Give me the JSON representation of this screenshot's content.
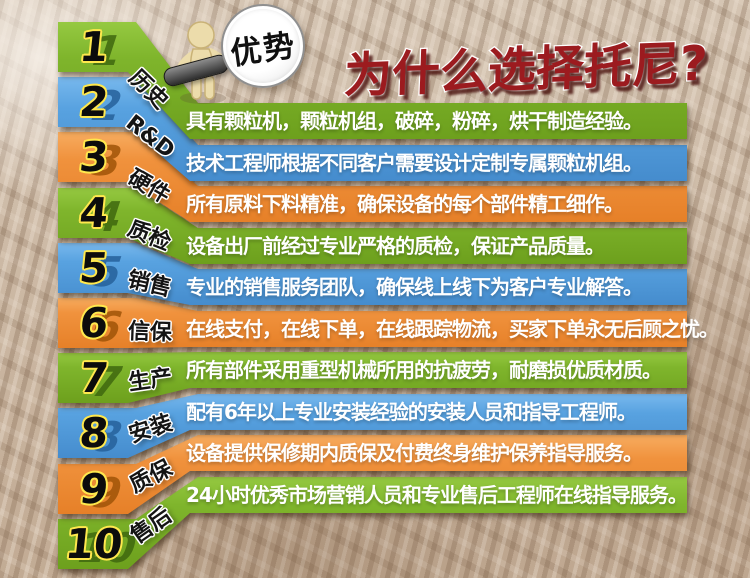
{
  "page": {
    "badge_label": "优势",
    "headline": "为什么选择托尼?",
    "colors": {
      "green": "#7fb52c",
      "blue": "#58a2e0",
      "orange": "#f0923d",
      "headline_red": "#9c1b1f",
      "number_outline_yellow": "#ffe84d"
    }
  },
  "rows": [
    {
      "num": "1",
      "category": "历史",
      "color": "green",
      "description": "具有颗粒机，颗粒机组，破碎，粉碎，烘干制造经验。"
    },
    {
      "num": "2",
      "category": "R&D",
      "color": "blue",
      "description": "技术工程师根据不同客户需要设计定制专属颗粒机组。"
    },
    {
      "num": "3",
      "category": "硬件",
      "color": "orange",
      "description": "所有原料下料精准，确保设备的每个部件精工细作。"
    },
    {
      "num": "4",
      "category": "质检",
      "color": "green",
      "description": "设备出厂前经过专业严格的质检，保证产品质量。"
    },
    {
      "num": "5",
      "category": "销售",
      "color": "blue",
      "description": "专业的销售服务团队，确保线上线下为客户专业解答。"
    },
    {
      "num": "6",
      "category": "信保",
      "color": "orange",
      "description": "在线支付，在线下单，在线跟踪物流，买家下单永无后顾之忧。"
    },
    {
      "num": "7",
      "category": "生产",
      "color": "green",
      "description": "所有部件采用重型机械所用的抗疲劳，耐磨损优质材质。"
    },
    {
      "num": "8",
      "category": "安装",
      "color": "blue",
      "description": "配有6年以上专业安装经验的安装人员和指导工程师。"
    },
    {
      "num": "9",
      "category": "质保",
      "color": "orange",
      "description": "设备提供保修期内质保及付费终身维护保养指导服务。"
    },
    {
      "num": "10",
      "category": "售后",
      "color": "green",
      "description": "24小时优秀市场营销人员和专业售后工程师在线指导服务。"
    }
  ]
}
